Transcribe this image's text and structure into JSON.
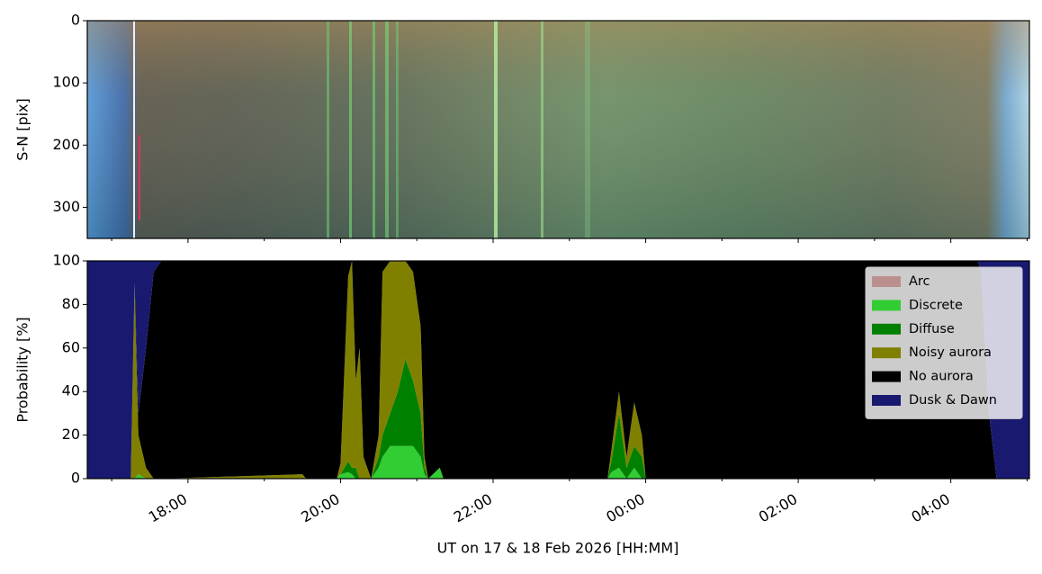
{
  "chart_data": [
    {
      "type": "image",
      "ylabel": "S-N [pix]",
      "ylim": [
        350,
        0
      ],
      "yticks": [
        0,
        100,
        200,
        300
      ]
    },
    {
      "type": "stackedarea",
      "xlabel": "UT on 17 & 18 Feb 2026 [HH:MM]",
      "ylabel": "Probability [%]",
      "x": [
        16.68,
        17.25,
        17.3,
        17.35,
        17.45,
        17.55,
        17.65,
        19.5,
        19.55,
        19.95,
        20.0,
        20.1,
        20.15,
        20.2,
        20.25,
        20.3,
        20.4,
        20.5,
        20.55,
        20.65,
        20.75,
        20.85,
        20.95,
        21.05,
        21.1,
        21.15,
        21.3,
        21.35,
        23.5,
        23.55,
        23.65,
        23.75,
        23.85,
        23.95,
        24.0,
        28.35,
        28.4,
        28.5,
        28.6,
        29.03
      ],
      "series": [
        {
          "name": "Arc",
          "color": "#bc8f8f",
          "values": [
            0,
            0,
            0,
            0,
            0,
            0,
            0,
            0,
            0,
            0,
            0,
            0,
            0,
            0,
            0,
            0,
            0,
            0,
            0,
            0,
            0,
            0,
            0,
            0,
            0,
            0,
            0,
            0,
            0,
            0,
            0,
            0,
            0,
            0,
            0,
            0,
            0,
            0,
            0,
            0
          ]
        },
        {
          "name": "Discrete",
          "color": "#32cd32",
          "values": [
            0,
            0,
            0,
            2,
            0,
            0,
            0,
            0,
            0,
            0,
            2,
            3,
            2,
            0,
            0,
            0,
            0,
            5,
            10,
            15,
            15,
            15,
            15,
            10,
            2,
            0,
            5,
            0,
            0,
            3,
            5,
            0,
            5,
            0,
            0,
            0,
            0,
            0,
            0,
            0
          ]
        },
        {
          "name": "Diffuse",
          "color": "#008000",
          "values": [
            0,
            0,
            0,
            0,
            0,
            0,
            0,
            0,
            0,
            0,
            0,
            5,
            3,
            5,
            0,
            0,
            0,
            5,
            10,
            15,
            25,
            40,
            30,
            20,
            3,
            0,
            0,
            0,
            0,
            5,
            25,
            5,
            10,
            10,
            0,
            0,
            0,
            0,
            0,
            0
          ]
        },
        {
          "name": "Noisy aurora",
          "color": "#808000",
          "values": [
            0,
            0,
            88,
            18,
            5,
            0,
            0,
            2,
            0,
            0,
            5,
            85,
            95,
            40,
            60,
            10,
            0,
            10,
            75,
            70,
            60,
            45,
            50,
            40,
            5,
            0,
            0,
            0,
            0,
            5,
            10,
            5,
            20,
            10,
            0,
            0,
            0,
            0,
            0,
            0
          ]
        },
        {
          "name": "No aurora",
          "color": "#000000",
          "values": [
            0,
            0,
            2,
            10,
            55,
            95,
            100,
            98,
            100,
            100,
            93,
            7,
            0,
            55,
            40,
            90,
            100,
            80,
            5,
            0,
            0,
            0,
            5,
            30,
            90,
            100,
            95,
            100,
            100,
            87,
            60,
            90,
            65,
            80,
            100,
            100,
            95,
            30,
            0,
            0
          ]
        },
        {
          "name": "Dusk & Dawn",
          "color": "#191970",
          "values": [
            100,
            100,
            10,
            70,
            40,
            5,
            0,
            0,
            0,
            0,
            0,
            0,
            0,
            0,
            0,
            0,
            0,
            0,
            0,
            0,
            0,
            0,
            0,
            0,
            0,
            0,
            0,
            0,
            0,
            0,
            0,
            0,
            0,
            0,
            0,
            0,
            5,
            70,
            100,
            100
          ]
        }
      ],
      "xlim": [
        16.68,
        29.03
      ],
      "xticks": [
        {
          "value": 18,
          "label": "18:00"
        },
        {
          "value": 20,
          "label": "20:00"
        },
        {
          "value": 22,
          "label": "22:00"
        },
        {
          "value": 24,
          "label": "00:00"
        },
        {
          "value": 26,
          "label": "02:00"
        },
        {
          "value": 28,
          "label": "04:00"
        }
      ],
      "xminorticks": [
        17,
        19,
        21,
        23,
        25,
        27,
        29
      ],
      "ylim": [
        0,
        100
      ],
      "yticks": [
        0,
        20,
        40,
        60,
        80,
        100
      ],
      "legend": "upper right"
    }
  ]
}
